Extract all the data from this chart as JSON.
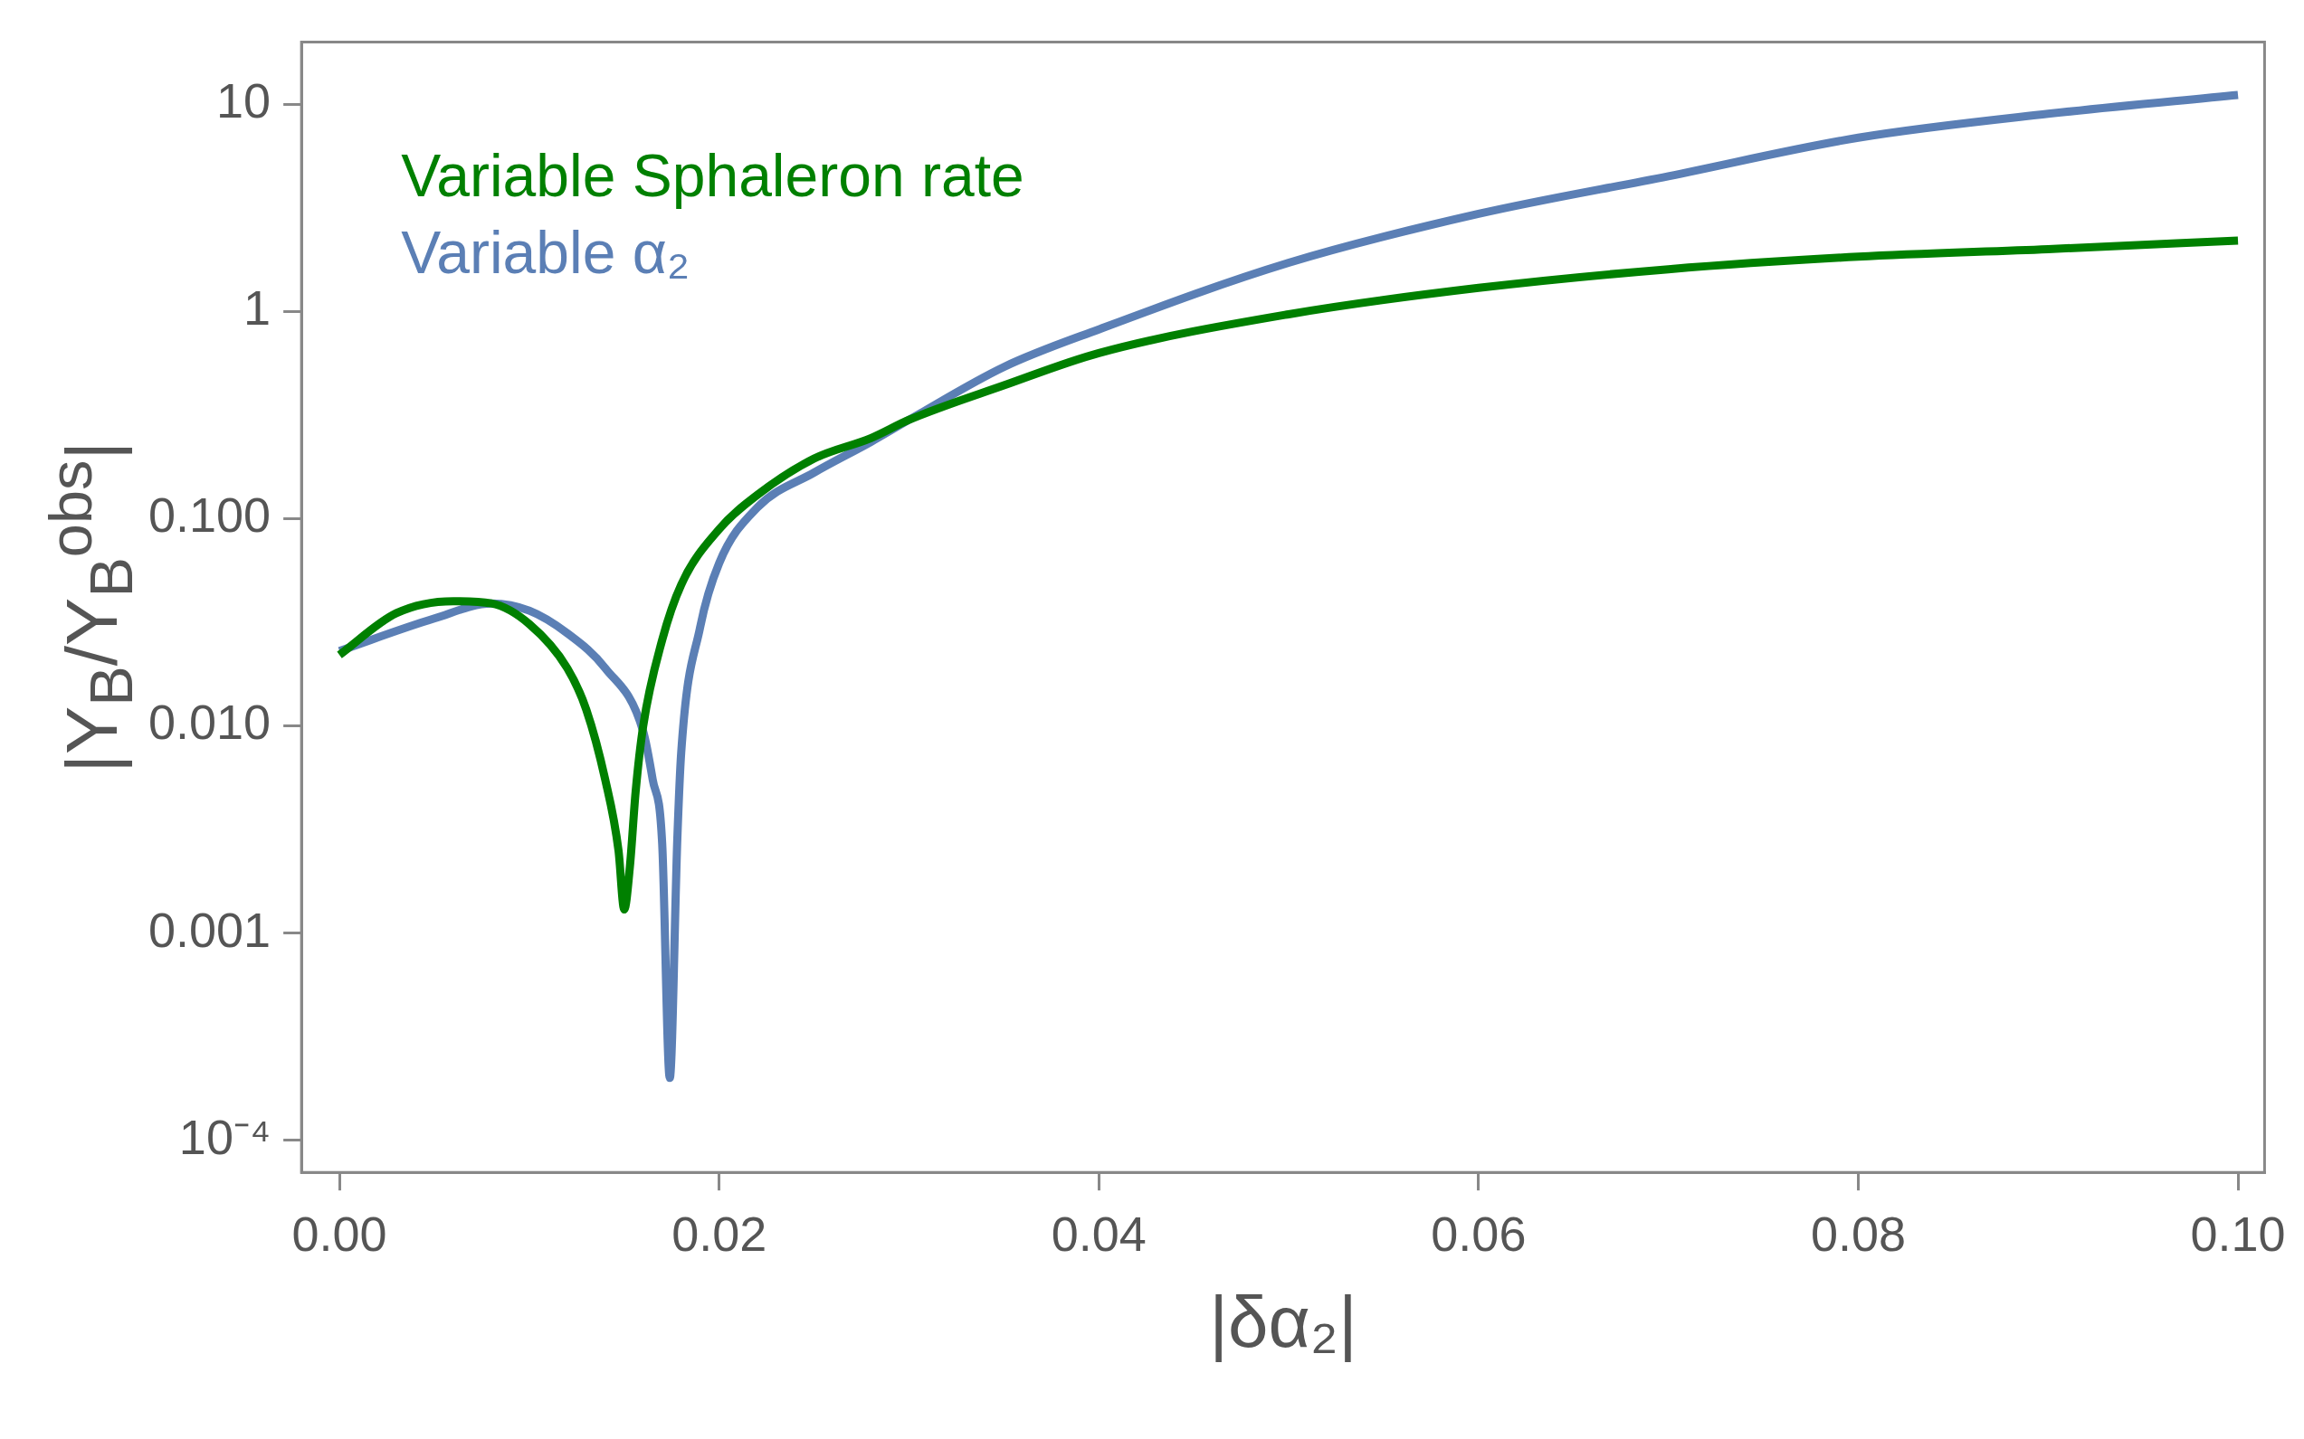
{
  "chart_data": {
    "type": "line",
    "xlabel": "|δα₂|",
    "ylabel": "|Y$_{B}$/Y$_{B}$$^{obs}$|",
    "log": "y",
    "grid": false,
    "legend": "top left",
    "marker": "none",
    "line_style": "solid",
    "xlim": [
      -0.002,
      0.1014
    ],
    "xticks": [
      {
        "value": 0,
        "label": "0.00"
      },
      {
        "value": 0.02,
        "label": "0.02"
      },
      {
        "value": 0.04,
        "label": "0.04"
      },
      {
        "value": 0.06,
        "label": "0.06"
      },
      {
        "value": 0.08,
        "label": "0.08"
      },
      {
        "value": 0.1,
        "label": "0.10"
      }
    ],
    "ylim": [
      7e-05,
      20
    ],
    "yticks": [
      {
        "value": 0.0001,
        "label": "10⁻⁴"
      },
      {
        "value": 0.001,
        "label": "0.001"
      },
      {
        "value": 0.01,
        "label": "0.010"
      },
      {
        "value": 0.1,
        "label": "0.100"
      },
      1,
      10
    ],
    "series": [
      {
        "name": "Variable Sphaleron rate",
        "color": "#008000",
        "x": [
          0,
          0.003,
          0.006,
          0.008,
          0.01,
          0.012,
          0.013,
          0.014,
          0.0147,
          0.015,
          0.0153,
          0.0156,
          0.016,
          0.017,
          0.018,
          0.02,
          0.022,
          0.025,
          0.028,
          0.03,
          0.035,
          0.04,
          0.05,
          0.06,
          0.07,
          0.08,
          0.09,
          0.1
        ],
        "values": [
          0.022,
          0.035,
          0.04,
          0.039,
          0.031,
          0.019,
          0.012,
          0.0055,
          0.0025,
          0.0013,
          0.0021,
          0.0048,
          0.01,
          0.026,
          0.048,
          0.089,
          0.13,
          0.195,
          0.245,
          0.3,
          0.44,
          0.63,
          0.97,
          1.3,
          1.6,
          1.84,
          2.0,
          2.2
        ]
      },
      {
        "name": "Variable α₂",
        "color": "#5b7fb5",
        "x": [
          0,
          0.005,
          0.008,
          0.01,
          0.012,
          0.014,
          0.016,
          0.0165,
          0.017,
          0.0174,
          0.0178,
          0.018,
          0.019,
          0.02,
          0.022,
          0.025,
          0.028,
          0.03,
          0.035,
          0.04,
          0.05,
          0.06,
          0.07,
          0.08,
          0.09,
          0.1
        ],
        "values": [
          0.023,
          0.033,
          0.039,
          0.036,
          0.028,
          0.019,
          0.0094,
          0.0055,
          0.0027,
          0.0002,
          0.0029,
          0.0074,
          0.03,
          0.061,
          0.113,
          0.167,
          0.235,
          0.3,
          0.54,
          0.82,
          1.72,
          2.96,
          4.5,
          6.9,
          9.0,
          11.1
        ]
      }
    ]
  }
}
